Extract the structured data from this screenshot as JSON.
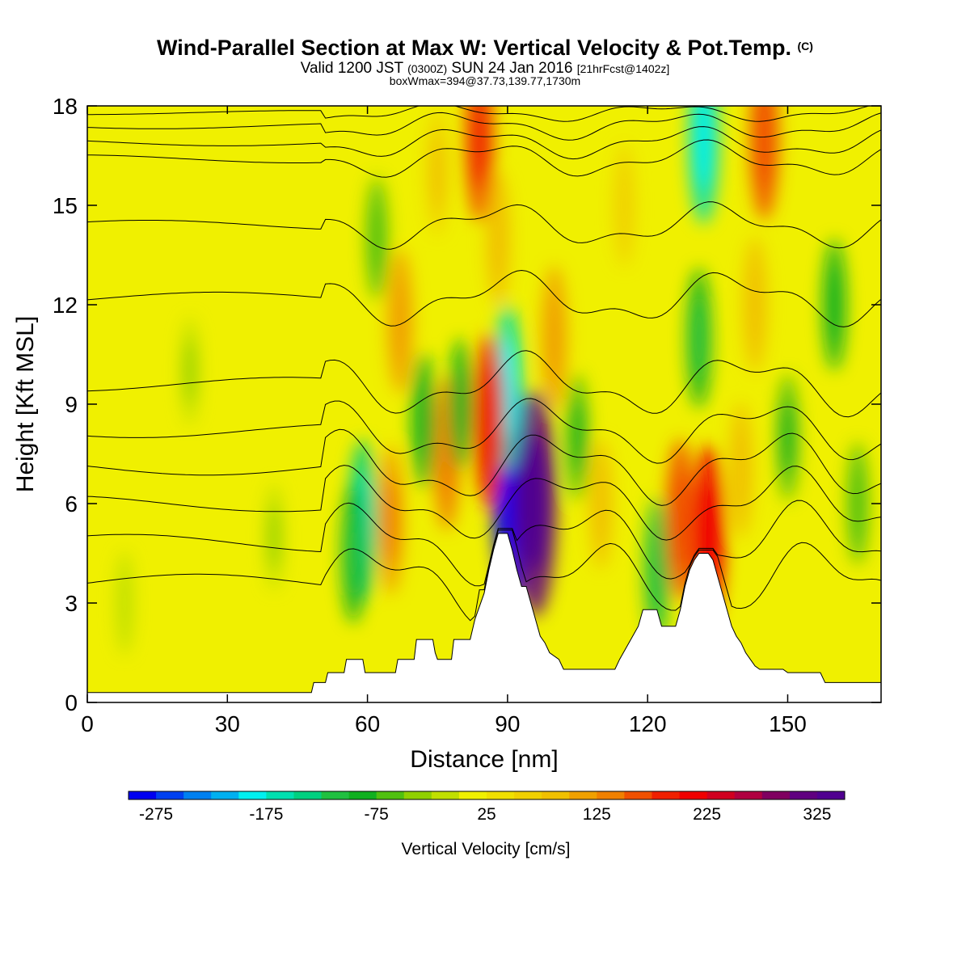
{
  "title": {
    "main": "Wind-Parallel Section at Max W: Vertical Velocity & Pot.Temp.",
    "copyright": "(C)",
    "valid_pre": "Valid 1200 JST",
    "valid_z": "(0300Z)",
    "valid_post": "SUN 24 Jan 2016",
    "fcst": "[21hrFcst@1402z]",
    "box": "boxWmax=394@37.73,139.77,1730m"
  },
  "chart_data": {
    "type": "heatmap",
    "xlabel": "Distance [nm]",
    "ylabel": "Height [Kft MSL]",
    "xlim": [
      0,
      170
    ],
    "ylim": [
      0,
      18
    ],
    "xticks": [
      0,
      30,
      60,
      90,
      120,
      150
    ],
    "yticks": [
      0,
      3,
      6,
      9,
      12,
      15,
      18
    ],
    "colorbar": {
      "label": "Vertical Velocity [cm/s]",
      "min": -300,
      "max": 350,
      "step": 25,
      "tick_labels": [
        "-275",
        "-175",
        "-75",
        "25",
        "125",
        "225",
        "325"
      ],
      "colors": [
        "#0000f0",
        "#0040f0",
        "#0080f0",
        "#00b0f0",
        "#00f0f0",
        "#00e0b0",
        "#00d080",
        "#20c040",
        "#10b020",
        "#50c010",
        "#90d000",
        "#c0e000",
        "#f0f000",
        "#f0e000",
        "#f0d000",
        "#f0c000",
        "#f0a000",
        "#f08000",
        "#f05000",
        "#f02000",
        "#f00000",
        "#d00020",
        "#b00040",
        "#800060",
        "#600080",
        "#500090"
      ]
    },
    "background_w": 10,
    "terrain_kft": [
      [
        0,
        0.3
      ],
      [
        48,
        0.3
      ],
      [
        48.5,
        0.6
      ],
      [
        51,
        0.6
      ],
      [
        51.5,
        0.9
      ],
      [
        55,
        0.9
      ],
      [
        55.5,
        1.3
      ],
      [
        59,
        1.3
      ],
      [
        59.5,
        0.9
      ],
      [
        66,
        0.9
      ],
      [
        66.5,
        1.3
      ],
      [
        70,
        1.3
      ],
      [
        70.5,
        1.9
      ],
      [
        74,
        1.9
      ],
      [
        74.5,
        1.5
      ],
      [
        75,
        1.3
      ],
      [
        78,
        1.3
      ],
      [
        78.5,
        1.9
      ],
      [
        82,
        1.9
      ],
      [
        83,
        2.5
      ],
      [
        85,
        3.3
      ],
      [
        86,
        4
      ],
      [
        87,
        4.6
      ],
      [
        88,
        5.1
      ],
      [
        90,
        5.1
      ],
      [
        91,
        4.6
      ],
      [
        92,
        4
      ],
      [
        93,
        3.5
      ],
      [
        94,
        3.5
      ],
      [
        95,
        3.0
      ],
      [
        96,
        2.5
      ],
      [
        97,
        2.0
      ],
      [
        98,
        1.8
      ],
      [
        99,
        1.5
      ],
      [
        101,
        1.3
      ],
      [
        102,
        1.0
      ],
      [
        103,
        1.0
      ],
      [
        113,
        1.0
      ],
      [
        114,
        1.3
      ],
      [
        116,
        1.8
      ],
      [
        118,
        2.3
      ],
      [
        119,
        2.8
      ],
      [
        122,
        2.8
      ],
      [
        123,
        2.3
      ],
      [
        126,
        2.3
      ],
      [
        127,
        2.8
      ],
      [
        128,
        3.5
      ],
      [
        129,
        4.0
      ],
      [
        130,
        4.3
      ],
      [
        131,
        4.5
      ],
      [
        133,
        4.5
      ],
      [
        134,
        4.3
      ],
      [
        135,
        3.8
      ],
      [
        136,
        3.3
      ],
      [
        137,
        2.8
      ],
      [
        138,
        2.3
      ],
      [
        139,
        2.0
      ],
      [
        140,
        1.8
      ],
      [
        141,
        1.5
      ],
      [
        142,
        1.3
      ],
      [
        143,
        1.1
      ],
      [
        144,
        1.0
      ],
      [
        149,
        1.0
      ],
      [
        150,
        0.9
      ],
      [
        157,
        0.9
      ],
      [
        158,
        0.6
      ],
      [
        170,
        0.6
      ]
    ],
    "w_features": [
      {
        "x": 91,
        "y": 6.5,
        "value": -290
      },
      {
        "x": 96,
        "y": 6.0,
        "value": 300
      },
      {
        "x": 90,
        "y": 9.5,
        "value": -160
      },
      {
        "x": 86,
        "y": 8.5,
        "value": 180
      },
      {
        "x": 59,
        "y": 5.5,
        "value": -150
      },
      {
        "x": 57,
        "y": 4.5,
        "value": -100
      },
      {
        "x": 65,
        "y": 5.5,
        "value": 120
      },
      {
        "x": 77,
        "y": 7.5,
        "value": 130
      },
      {
        "x": 72,
        "y": 8.5,
        "value": -90
      },
      {
        "x": 80,
        "y": 9.0,
        "value": -80
      },
      {
        "x": 100,
        "y": 11.0,
        "value": 110
      },
      {
        "x": 105,
        "y": 8.0,
        "value": -70
      },
      {
        "x": 110,
        "y": 6.0,
        "value": 80
      },
      {
        "x": 122,
        "y": 4.0,
        "value": -110
      },
      {
        "x": 127,
        "y": 5.5,
        "value": 150
      },
      {
        "x": 133,
        "y": 5.0,
        "value": 200
      },
      {
        "x": 131,
        "y": 11.0,
        "value": -100
      },
      {
        "x": 132,
        "y": 17.0,
        "value": -170
      },
      {
        "x": 145,
        "y": 17.0,
        "value": 150
      },
      {
        "x": 143,
        "y": 12.0,
        "value": 90
      },
      {
        "x": 150,
        "y": 8.0,
        "value": -70
      },
      {
        "x": 160,
        "y": 12.0,
        "value": -80
      },
      {
        "x": 165,
        "y": 6.0,
        "value": -60
      },
      {
        "x": 67,
        "y": 11.5,
        "value": 110
      },
      {
        "x": 62,
        "y": 14.0,
        "value": -60
      },
      {
        "x": 88,
        "y": 14.0,
        "value": 90
      },
      {
        "x": 84,
        "y": 17.0,
        "value": 160
      },
      {
        "x": 75,
        "y": 16.0,
        "value": 70
      },
      {
        "x": 115,
        "y": 15.0,
        "value": 60
      },
      {
        "x": 40,
        "y": 5.0,
        "value": -25
      },
      {
        "x": 22,
        "y": 10.0,
        "value": -25
      },
      {
        "x": 8,
        "y": 3.0,
        "value": -15
      },
      {
        "x": 140,
        "y": 7.0,
        "value": 90
      }
    ],
    "isentropes": [
      {
        "base": 3.6,
        "amp": 0.9
      },
      {
        "base": 4.8,
        "amp": 0.9
      },
      {
        "base": 6.0,
        "amp": 0.8
      },
      {
        "base": 7.1,
        "amp": 0.8
      },
      {
        "base": 8.2,
        "amp": 0.7
      },
      {
        "base": 9.6,
        "amp": 0.7
      },
      {
        "base": 12.2,
        "amp": 0.6
      },
      {
        "base": 14.4,
        "amp": 0.5
      },
      {
        "base": 16.4,
        "amp": 0.4
      },
      {
        "base": 16.9,
        "amp": 0.35
      },
      {
        "base": 17.4,
        "amp": 0.3
      },
      {
        "base": 17.8,
        "amp": 0.2
      }
    ]
  }
}
